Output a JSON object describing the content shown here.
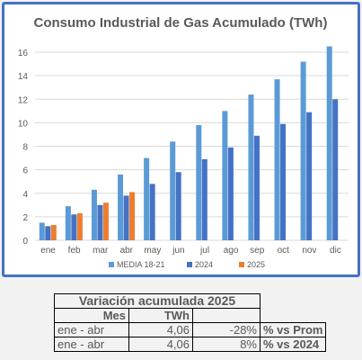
{
  "chart_data": {
    "type": "bar",
    "title": "Consumo Industrial de Gas Acumulado (TWh)",
    "categories": [
      "ene",
      "feb",
      "mar",
      "abr",
      "may",
      "jun",
      "jul",
      "ago",
      "sep",
      "oct",
      "nov",
      "dic"
    ],
    "series": [
      {
        "name": "MEDIA 18-21",
        "color": "#5b9bd5",
        "values": [
          1.5,
          2.9,
          4.3,
          5.6,
          7.0,
          8.4,
          9.8,
          11.0,
          12.4,
          13.7,
          15.2,
          16.5
        ]
      },
      {
        "name": "2024",
        "color": "#4472c4",
        "values": [
          1.2,
          2.2,
          3.0,
          3.8,
          4.8,
          5.8,
          6.9,
          7.9,
          8.9,
          9.9,
          10.9,
          12.0
        ]
      },
      {
        "name": "2025",
        "color": "#ed7d31",
        "values": [
          1.3,
          2.3,
          3.2,
          4.1,
          null,
          null,
          null,
          null,
          null,
          null,
          null,
          null
        ]
      }
    ],
    "ylim": [
      0,
      17
    ],
    "yticks": [
      0,
      2,
      4,
      6,
      8,
      10,
      12,
      14,
      16
    ],
    "grid": true,
    "legend_position": "bottom"
  },
  "table": {
    "title": "Variación acumulada 2025",
    "headers": [
      "Mes",
      "TWh"
    ],
    "rows": [
      {
        "mes": "ene - abr",
        "twh": "4,06",
        "pct": "-28%",
        "label": "% vs Prom"
      },
      {
        "mes": "ene - abr",
        "twh": "4,06",
        "pct": "8%",
        "label": "% vs 2024"
      }
    ]
  }
}
